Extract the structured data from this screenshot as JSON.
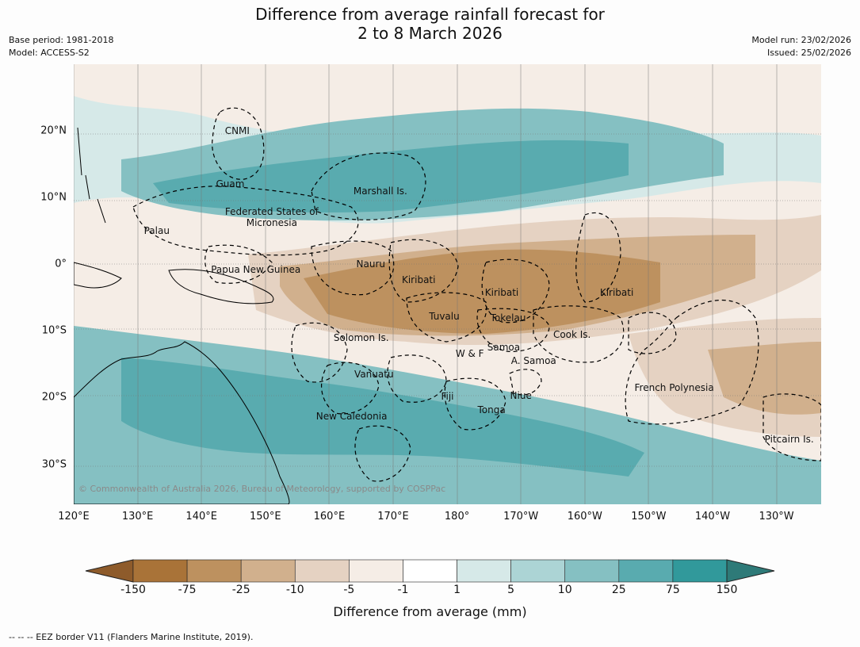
{
  "title": {
    "line1": "Difference from average rainfall forecast for",
    "line2": "2 to 8 March 2026"
  },
  "meta": {
    "base_period": "Base period: 1981-2018",
    "model": "Model: ACCESS-S2",
    "model_run": "Model run: 23/02/2026",
    "issued": "Issued: 25/02/2026"
  },
  "map": {
    "lon_range": [
      120,
      237
    ],
    "lat_range": [
      -36,
      30
    ],
    "lon_labels": [
      "120°E",
      "130°E",
      "140°E",
      "150°E",
      "160°E",
      "170°E",
      "180°",
      "170°W",
      "160°W",
      "150°W",
      "140°W",
      "130°W"
    ],
    "lat_labels": [
      "20°N",
      "10°N",
      "0°",
      "10°S",
      "20°S",
      "30°S"
    ],
    "copyright": "© Commonwealth of Australia 2026, Bureau of Meteorology, supported by COSPPac",
    "regions": [
      {
        "name": "CNMI",
        "lon": 145.6,
        "lat": 20
      },
      {
        "name": "Guam",
        "lon": 144.5,
        "lat": 12
      },
      {
        "name": "Marshall Is.",
        "lon": 168,
        "lat": 11
      },
      {
        "name": "Federated States of Micronesia",
        "lon": 151,
        "lat": 7
      },
      {
        "name": "Palau",
        "lon": 133,
        "lat": 5
      },
      {
        "name": "Papua New Guinea",
        "lon": 148.5,
        "lat": -0.8
      },
      {
        "name": "Nauru",
        "lon": 166.5,
        "lat": 0
      },
      {
        "name": "Kiribati",
        "lon": 174,
        "lat": -2.3
      },
      {
        "name": "Kiribati",
        "lon": 187,
        "lat": -4.2
      },
      {
        "name": "Kiribati",
        "lon": 205,
        "lat": -4.2
      },
      {
        "name": "Tuvalu",
        "lon": 178,
        "lat": -7.8
      },
      {
        "name": "Tokelau",
        "lon": 188,
        "lat": -8
      },
      {
        "name": "Cook Is.",
        "lon": 198,
        "lat": -10.5
      },
      {
        "name": "Solomon Is.",
        "lon": 165,
        "lat": -11
      },
      {
        "name": "W & F",
        "lon": 182,
        "lat": -13.4
      },
      {
        "name": "Samoa",
        "lon": 187.3,
        "lat": -12.5
      },
      {
        "name": "A. Samoa",
        "lon": 192,
        "lat": -14.5
      },
      {
        "name": "Vanuatu",
        "lon": 167,
        "lat": -16.5
      },
      {
        "name": "Fiji",
        "lon": 178.5,
        "lat": -19.8
      },
      {
        "name": "Niue",
        "lon": 190,
        "lat": -19.7
      },
      {
        "name": "Tonga",
        "lon": 185.4,
        "lat": -21.8
      },
      {
        "name": "French Polynesia",
        "lon": 214,
        "lat": -18.5
      },
      {
        "name": "New Caledonia",
        "lon": 163.5,
        "lat": -22.8
      },
      {
        "name": "Pitcairn Is.",
        "lon": 232,
        "lat": -26.2
      }
    ]
  },
  "colorbar": {
    "title": "Difference from average (mm)",
    "labels": [
      "-150",
      "-75",
      "-25",
      "-10",
      "-5",
      "-1",
      "1",
      "5",
      "10",
      "25",
      "75",
      "150"
    ],
    "colors": [
      "#a97338",
      "#bd915f",
      "#d1b08d",
      "#e5d2c2",
      "#f5ede6",
      "#ffffff",
      "#d6e9e8",
      "#acd4d5",
      "#85c0c2",
      "#59abaf",
      "#31999b"
    ],
    "low_extend_color": "#8e5b2b",
    "high_extend_color": "#2e7a78"
  },
  "footer": "--  --  -- EEZ border V11 (Flanders Marine Institute, 2019)."
}
